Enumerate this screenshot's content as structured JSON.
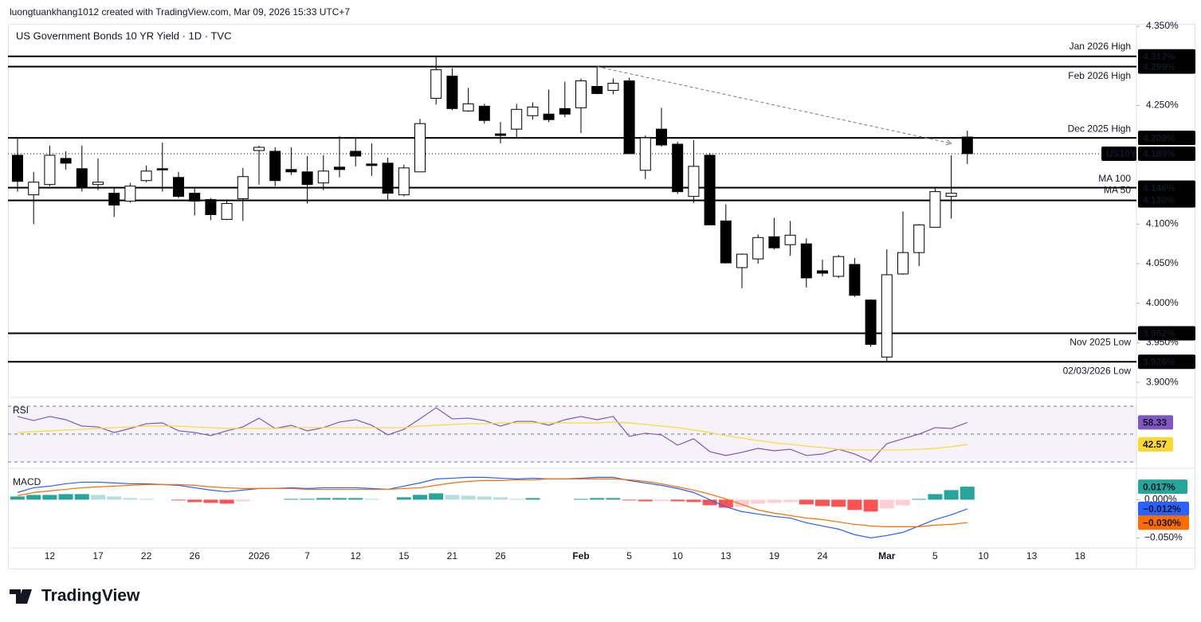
{
  "header": {
    "attribution": "luongtuankhang1012 created with TradingView.com, Mar 09, 2026 15:33 UTC+7",
    "logo": "TradingView"
  },
  "chart_data": [
    {
      "type": "candlestick",
      "title": "US Government Bonds 10 YR Yield · 1D · TVC",
      "categories": [
        null,
        null,
        "12",
        null,
        null,
        "17",
        null,
        null,
        "22",
        null,
        null,
        "26",
        null,
        null,
        null,
        "2026",
        null,
        null,
        "7",
        null,
        null,
        "12",
        null,
        null,
        "15",
        null,
        null,
        "21",
        null,
        null,
        "26",
        null,
        null,
        null,
        null,
        "Feb",
        null,
        null,
        "5",
        null,
        null,
        "10",
        null,
        null,
        "13",
        null,
        null,
        "19",
        null,
        null,
        "24",
        null,
        null,
        null,
        "Mar",
        null,
        null,
        "5",
        null,
        null,
        "10",
        null,
        null,
        "13",
        null,
        null,
        "18"
      ],
      "open": [
        4.187,
        4.137,
        4.15,
        4.183,
        4.17,
        4.15,
        4.139,
        4.129,
        4.155,
        4.17,
        4.159,
        4.139,
        4.131,
        4.106,
        4.132,
        4.193,
        4.192,
        4.169,
        4.166,
        4.152,
        4.172,
        4.192,
        4.176,
        4.177,
        4.137,
        4.166,
        4.259,
        4.287,
        4.243,
        4.249,
        4.214,
        4.22,
        4.237,
        4.239,
        4.246,
        4.247,
        4.274,
        4.269,
        4.281,
        4.168,
        4.22,
        4.201,
        4.135,
        4.187,
        4.104,
        4.045,
        4.056,
        4.084,
        4.074,
        4.075,
        4.041,
        4.034,
        4.049,
        4.004,
        3.932,
        4.037,
        4.064,
        4.096,
        4.135,
        4.21,
        null,
        null,
        null,
        null,
        null,
        null,
        null
      ],
      "high": [
        4.21,
        4.166,
        4.199,
        4.192,
        4.199,
        4.183,
        4.146,
        4.152,
        4.174,
        4.203,
        4.166,
        4.146,
        4.133,
        4.131,
        4.171,
        4.199,
        4.197,
        4.197,
        4.186,
        4.187,
        4.211,
        4.209,
        4.202,
        4.184,
        4.175,
        4.233,
        4.312,
        4.297,
        4.272,
        4.252,
        4.229,
        4.252,
        4.254,
        4.27,
        4.28,
        4.284,
        4.299,
        4.284,
        4.285,
        4.212,
        4.247,
        4.204,
        4.206,
        4.19,
        4.125,
        4.063,
        4.087,
        4.108,
        4.104,
        4.082,
        4.055,
        4.061,
        4.057,
        4.005,
        4.068,
        4.116,
        4.1,
        4.147,
        4.187,
        4.218,
        null,
        null,
        null,
        null,
        null,
        null,
        null
      ],
      "low": [
        4.141,
        4.1,
        4.148,
        4.169,
        4.141,
        4.143,
        4.109,
        4.127,
        4.153,
        4.141,
        4.133,
        4.111,
        4.105,
        4.105,
        4.104,
        4.15,
        4.148,
        4.162,
        4.126,
        4.143,
        4.159,
        4.173,
        4.161,
        4.131,
        4.135,
        4.166,
        4.251,
        4.244,
        4.242,
        4.227,
        4.202,
        4.21,
        4.232,
        4.229,
        4.235,
        4.215,
        4.264,
        4.264,
        4.189,
        4.157,
        4.198,
        4.138,
        4.127,
        4.099,
        4.05,
        4.019,
        4.05,
        4.068,
        4.06,
        4.02,
        4.034,
        4.032,
        4.008,
        3.945,
        3.926,
        4.036,
        4.047,
        4.096,
        4.107,
        4.176,
        null,
        null,
        null,
        null,
        null,
        null,
        null
      ],
      "close": [
        4.154,
        4.153,
        4.187,
        4.177,
        4.146,
        4.153,
        4.124,
        4.148,
        4.167,
        4.169,
        4.135,
        4.129,
        4.112,
        4.126,
        4.16,
        4.197,
        4.155,
        4.166,
        4.15,
        4.167,
        4.169,
        4.186,
        4.174,
        4.139,
        4.171,
        4.227,
        4.295,
        4.246,
        4.252,
        4.231,
        4.212,
        4.245,
        4.248,
        4.232,
        4.239,
        4.281,
        4.265,
        4.278,
        4.189,
        4.209,
        4.2,
        4.141,
        4.173,
        4.099,
        4.051,
        4.062,
        4.083,
        4.07,
        4.086,
        4.032,
        4.038,
        4.059,
        4.01,
        3.948,
        4.036,
        4.064,
        4.099,
        4.141,
        4.139,
        4.189,
        null,
        null,
        null,
        null,
        null,
        null,
        null
      ],
      "up_color": "#ffffff",
      "down_color": "#000000",
      "ylim": [
        3.885,
        4.352
      ],
      "yticks": [
        {
          "value": 4.35,
          "label": "4.350%"
        },
        {
          "value": 4.25,
          "label": "4.250%"
        },
        {
          "value": 4.1,
          "label": "4.100%"
        },
        {
          "value": 4.05,
          "label": "4.050%"
        },
        {
          "value": 4.0,
          "label": "4.000%"
        },
        {
          "value": 3.95,
          "label": "3.950%"
        },
        {
          "value": 3.9,
          "label": "3.900%"
        }
      ],
      "levels": [
        {
          "name": "Jan 2026 High",
          "value": 4.312,
          "value_label": "4.312%"
        },
        {
          "name": "Feb 2026 High",
          "value": 4.299,
          "value_label": "4.299%"
        },
        {
          "name": "Dec 2025 High",
          "value": 4.209,
          "value_label": "4.209%"
        },
        {
          "name": "MA 100",
          "value": 4.146,
          "value_label": "4.146%"
        },
        {
          "name": "MA 50",
          "value": 4.13,
          "value_label": "4.130%"
        },
        {
          "name": "Nov 2025 Low",
          "value": 3.962,
          "value_label": "3.962%"
        },
        {
          "name": "02/03/2026 Low",
          "value": 3.926,
          "value_label": "3.926%"
        }
      ],
      "level_color": "#2a5bd7",
      "last_price": {
        "name": "US10Y",
        "value": 4.189,
        "value_label": "4.189%"
      },
      "trendline": {
        "x": [
          36,
          58
        ],
        "values": [
          4.299,
          4.202
        ]
      }
    },
    {
      "type": "line",
      "title": "RSI",
      "ylim": [
        26,
        74
      ],
      "levels": [
        70,
        50,
        30
      ],
      "series": [
        {
          "color": "#7e57c2",
          "values": [
            62.6,
            59.7,
            62.6,
            60.3,
            55.7,
            55.1,
            51.1,
            54.0,
            57.4,
            58.0,
            52.3,
            51.1,
            48.9,
            52.3,
            55.1,
            61.4,
            54.0,
            56.3,
            52.3,
            54.6,
            58.6,
            60.3,
            56.3,
            49.4,
            53.4,
            60.9,
            68.9,
            60.9,
            61.4,
            59.7,
            55.7,
            59.1,
            59.1,
            56.3,
            60.3,
            62.6,
            60.3,
            62.6,
            48.3,
            50.6,
            49.4,
            42.0,
            46.6,
            37.4,
            34.6,
            36.9,
            39.7,
            38.0,
            39.1,
            34.6,
            35.7,
            39.1,
            35.7,
            30.6,
            43.1,
            46.6,
            50.0,
            54.6,
            54.0,
            58.33
          ]
        },
        {
          "color": "#fdd835",
          "values": [
            51.1,
            51.7,
            52.3,
            52.9,
            53.4,
            54.0,
            54.6,
            55.1,
            55.7,
            55.7,
            55.7,
            55.1,
            54.6,
            54.0,
            54.0,
            54.0,
            54.0,
            54.6,
            54.6,
            54.6,
            54.6,
            54.6,
            54.6,
            54.6,
            54.6,
            55.7,
            56.3,
            56.9,
            57.4,
            57.4,
            58.0,
            58.0,
            58.0,
            58.0,
            58.0,
            58.0,
            58.0,
            58.6,
            58.0,
            56.9,
            55.7,
            54.6,
            52.9,
            51.1,
            48.9,
            47.1,
            45.4,
            43.7,
            42.6,
            41.4,
            40.3,
            39.1,
            38.6,
            38.6,
            38.6,
            38.6,
            39.1,
            39.7,
            40.9,
            42.57
          ]
        }
      ]
    },
    {
      "type": "macd",
      "title": "MACD",
      "ylim": [
        -0.06,
        0.04
      ],
      "yticks": [
        {
          "value": 0,
          "label": "0.000%"
        },
        {
          "value": -0.05,
          "label": "−0.050%"
        }
      ],
      "histogram": {
        "colors": [
          "#26a69a",
          "#b2dfdb",
          "#ff5252",
          "#ffcdd2"
        ],
        "values": [
          0.0042,
          0.0062,
          0.0062,
          0.0073,
          0.0073,
          0.0062,
          0.0042,
          0.002,
          0.001,
          0,
          -0.001,
          -0.0032,
          -0.0042,
          -0.0052,
          -0.0021,
          0,
          0,
          0.001,
          0.0011,
          0.0021,
          0.0021,
          0.0021,
          0.0011,
          0,
          0.0031,
          0.0063,
          0.0083,
          0.0062,
          0.0052,
          0.0042,
          0.0031,
          0.0011,
          0.0021,
          0,
          0,
          0.001,
          0.0021,
          0.0021,
          -0.001,
          -0.0021,
          -0.002,
          -0.0021,
          -0.0031,
          -0.0073,
          -0.0104,
          -0.0093,
          -0.0053,
          -0.0042,
          -0.0032,
          -0.0062,
          -0.0084,
          -0.0093,
          -0.0135,
          -0.0156,
          -0.0115,
          -0.0073,
          0.001,
          0.0073,
          0.0125,
          0.017
        ],
        "value_labels": [
          null,
          null,
          null,
          null,
          null,
          null,
          null,
          null,
          null,
          null,
          null,
          null,
          null,
          null,
          null,
          null,
          null,
          null,
          null,
          null,
          null,
          null,
          null,
          null,
          null,
          null,
          null,
          null,
          null,
          null,
          null,
          null,
          null,
          null,
          null,
          null,
          null,
          null,
          null,
          null,
          null,
          null,
          null,
          null,
          null,
          null,
          null,
          null,
          null,
          null,
          null,
          null,
          null,
          null,
          null,
          null,
          null,
          null,
          null,
          "0.017%"
        ]
      },
      "series": [
        {
          "color": "#2962ff",
          "values": [
            0.0094,
            0.0156,
            0.0177,
            0.0208,
            0.0229,
            0.0229,
            0.0219,
            0.0208,
            0.0208,
            0.0198,
            0.0188,
            0.0156,
            0.0125,
            0.0104,
            0.0125,
            0.0146,
            0.0146,
            0.0156,
            0.0146,
            0.0156,
            0.0156,
            0.0156,
            0.0146,
            0.0135,
            0.0177,
            0.0219,
            0.0271,
            0.0281,
            0.0292,
            0.0292,
            0.0281,
            0.0271,
            0.0281,
            0.0271,
            0.0271,
            0.0281,
            0.0292,
            0.0292,
            0.025,
            0.0219,
            0.0188,
            0.0146,
            0.0094,
            0,
            -0.0094,
            -0.0156,
            -0.0188,
            -0.0219,
            -0.024,
            -0.0302,
            -0.0344,
            -0.0385,
            -0.0458,
            -0.05,
            -0.0469,
            -0.0427,
            -0.0344,
            -0.026,
            -0.0198,
            -0.012
          ],
          "value_labels": [
            null,
            null,
            null,
            null,
            null,
            null,
            null,
            null,
            null,
            null,
            null,
            null,
            null,
            null,
            null,
            null,
            null,
            null,
            null,
            null,
            null,
            null,
            null,
            null,
            null,
            null,
            null,
            null,
            null,
            null,
            null,
            null,
            null,
            null,
            null,
            null,
            null,
            null,
            null,
            null,
            null,
            null,
            null,
            null,
            null,
            null,
            null,
            null,
            null,
            null,
            null,
            null,
            null,
            null,
            null,
            null,
            null,
            null,
            null,
            "−0.012%"
          ]
        },
        {
          "color": "#ff6d00",
          "values": [
            0.0052,
            0.0094,
            0.0115,
            0.0135,
            0.0156,
            0.0167,
            0.0177,
            0.0188,
            0.0198,
            0.0198,
            0.0198,
            0.0188,
            0.0167,
            0.0156,
            0.0146,
            0.0146,
            0.0146,
            0.0146,
            0.0135,
            0.0135,
            0.0135,
            0.0135,
            0.0135,
            0.0135,
            0.0146,
            0.0156,
            0.0188,
            0.0219,
            0.024,
            0.025,
            0.025,
            0.026,
            0.026,
            0.0271,
            0.0271,
            0.0271,
            0.0271,
            0.0271,
            0.026,
            0.024,
            0.0208,
            0.0167,
            0.0125,
            0.0073,
            0.001,
            -0.0063,
            -0.0135,
            -0.0177,
            -0.0208,
            -0.024,
            -0.026,
            -0.0292,
            -0.0323,
            -0.0344,
            -0.0354,
            -0.0354,
            -0.0354,
            -0.0333,
            -0.0323,
            -0.03
          ],
          "value_labels": [
            null,
            null,
            null,
            null,
            null,
            null,
            null,
            null,
            null,
            null,
            null,
            null,
            null,
            null,
            null,
            null,
            null,
            null,
            null,
            null,
            null,
            null,
            null,
            null,
            null,
            null,
            null,
            null,
            null,
            null,
            null,
            null,
            null,
            null,
            null,
            null,
            null,
            null,
            null,
            null,
            null,
            null,
            null,
            null,
            null,
            null,
            null,
            null,
            null,
            null,
            null,
            null,
            null,
            null,
            null,
            null,
            null,
            null,
            null,
            "−0.030%"
          ]
        }
      ]
    }
  ]
}
